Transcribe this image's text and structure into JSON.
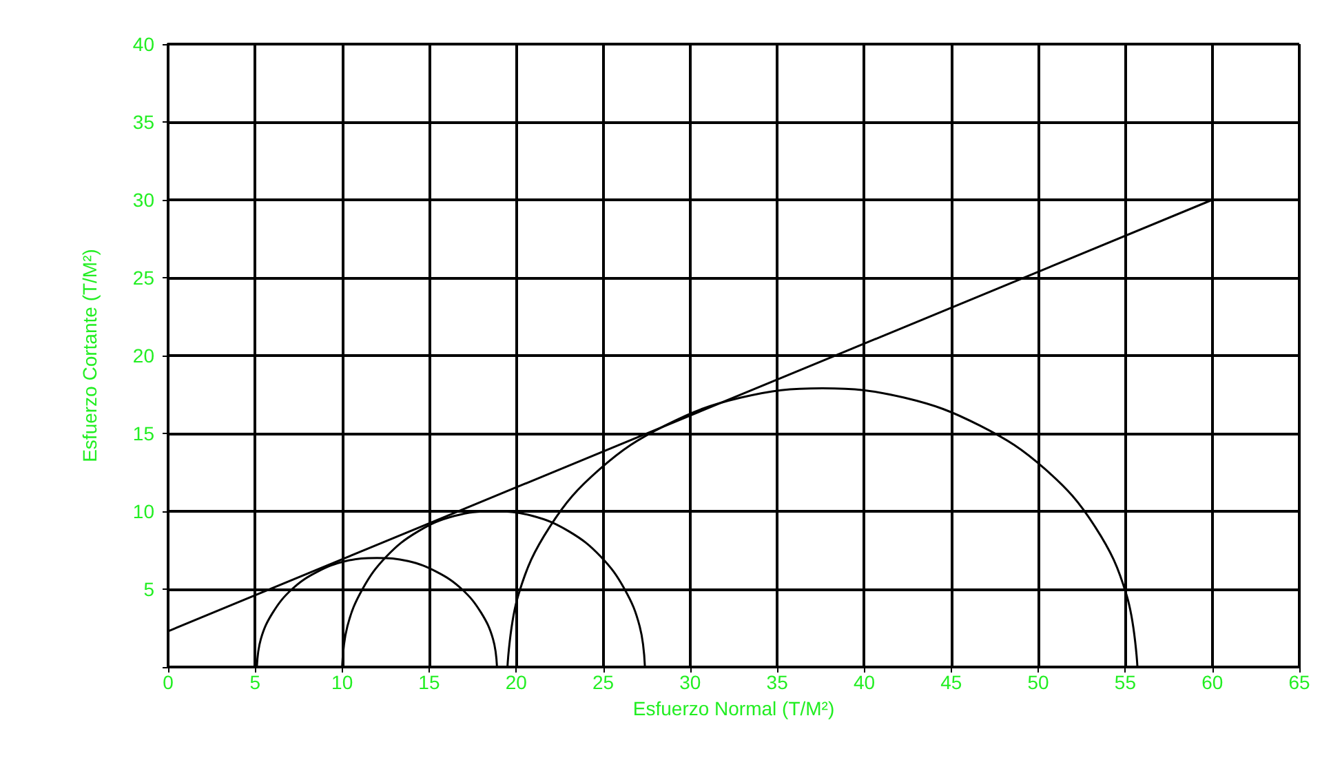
{
  "chart_data": {
    "type": "line",
    "xlabel": "Esfuerzo Normal (T/M²)",
    "ylabel": "Esfuerzo Cortante (T/M²)",
    "xlim": [
      0,
      65
    ],
    "ylim": [
      0,
      40
    ],
    "xticks": [
      0,
      5,
      10,
      15,
      20,
      25,
      30,
      35,
      40,
      45,
      50,
      55,
      60,
      65
    ],
    "yticks": [
      {
        "value": 0,
        "label": null
      },
      5,
      10,
      15,
      20,
      25,
      30,
      35,
      40
    ],
    "grid": true,
    "marker": "none",
    "line_style": "solid",
    "series": [
      {
        "color": "#000000",
        "x": [
          0,
          60
        ],
        "values": [
          2.3,
          30
        ]
      },
      {
        "color": "#000000",
        "x": [
          18.9,
          18.67,
          17.98,
          16.88,
          15.45,
          13.79,
          12,
          10.21,
          8.55,
          7.12,
          6.02,
          5.33,
          5.1
        ],
        "values": [
          0,
          1.8,
          3.5,
          5,
          6.1,
          6.8,
          7,
          6.8,
          6.1,
          5,
          3.5,
          1.8,
          0
        ]
      },
      {
        "color": "#000000",
        "x": [
          27.4,
          27.1,
          26.23,
          24.85,
          23.05,
          20.95,
          18.7,
          16.45,
          14.35,
          12.55,
          11.17,
          10.3,
          10
        ],
        "values": [
          0,
          2.6,
          5,
          7.1,
          8.7,
          9.7,
          10,
          9.7,
          8.7,
          7.1,
          5,
          2.6,
          0
        ]
      },
      {
        "color": "#000000",
        "x": [
          55.7,
          55.08,
          53.27,
          50.4,
          46.65,
          42.29,
          37.6,
          32.91,
          28.55,
          24.8,
          21.93,
          20.12,
          19.5
        ],
        "values": [
          0,
          4.6,
          9,
          12.7,
          15.5,
          17.3,
          17.9,
          17.3,
          15.5,
          12.7,
          9,
          4.6,
          0
        ]
      }
    ]
  }
}
